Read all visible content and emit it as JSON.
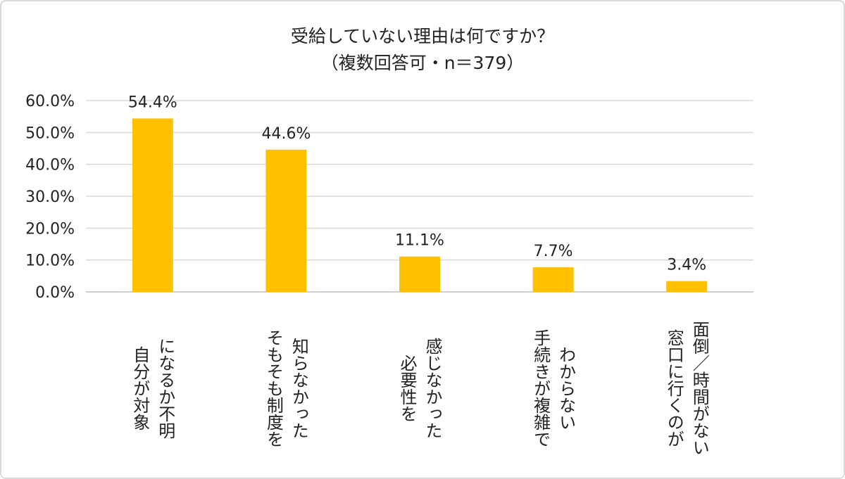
{
  "chart_data": {
    "type": "bar",
    "title": "受給していない理由は何ですか？",
    "subtitle": "（複数回答可・n＝379）",
    "categories": [
      [
        "自分が対象",
        "になるか不明"
      ],
      [
        "そもそも制度を",
        "知らなかった"
      ],
      [
        "必要性を",
        "感じなかった"
      ],
      [
        "手続きが複雑で",
        "わからない"
      ],
      [
        "窓口に行くのが",
        "面倒／時間がない"
      ]
    ],
    "values": [
      54.4,
      44.6,
      11.1,
      7.7,
      3.4
    ],
    "data_labels": [
      "54.4%",
      "44.6%",
      "11.1%",
      "7.7%",
      "3.4%"
    ],
    "yticks": [
      "0.0%",
      "10.0%",
      "20.0%",
      "30.0%",
      "40.0%",
      "50.0%",
      "60.0%"
    ],
    "ylim": [
      0,
      60
    ],
    "grid": true,
    "bar_color": "#FFC000",
    "xlabel": "",
    "ylabel": ""
  }
}
